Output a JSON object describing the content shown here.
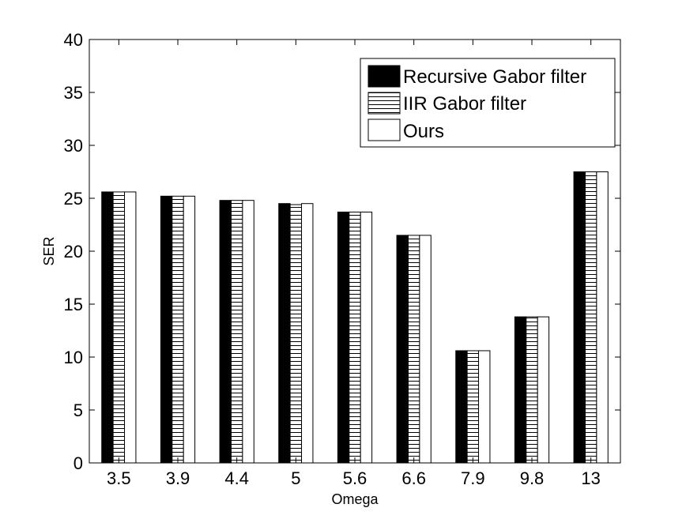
{
  "chart_data": {
    "type": "bar",
    "title": "",
    "xlabel": "Omega",
    "ylabel": "SER",
    "categories": [
      "3.5",
      "3.9",
      "4.4",
      "5",
      "5.6",
      "6.6",
      "7.9",
      "9.8",
      "13"
    ],
    "ylim": [
      0,
      40
    ],
    "yticks": [
      0,
      5,
      10,
      15,
      20,
      25,
      30,
      35,
      40
    ],
    "grid": false,
    "legend_position": "top-right",
    "series": [
      {
        "name": "Recursive Gabor filter",
        "pattern": "solid-black",
        "values": [
          25.6,
          25.2,
          24.8,
          24.5,
          23.7,
          21.5,
          10.6,
          13.8,
          27.5
        ]
      },
      {
        "name": "IIR Gabor filter",
        "pattern": "horizontal-hatch",
        "values": [
          25.6,
          25.2,
          24.8,
          24.4,
          23.7,
          21.5,
          10.6,
          13.8,
          27.5
        ]
      },
      {
        "name": "Ours",
        "pattern": "white",
        "values": [
          25.6,
          25.2,
          24.8,
          24.5,
          23.7,
          21.5,
          10.6,
          13.8,
          27.5
        ]
      }
    ]
  }
}
